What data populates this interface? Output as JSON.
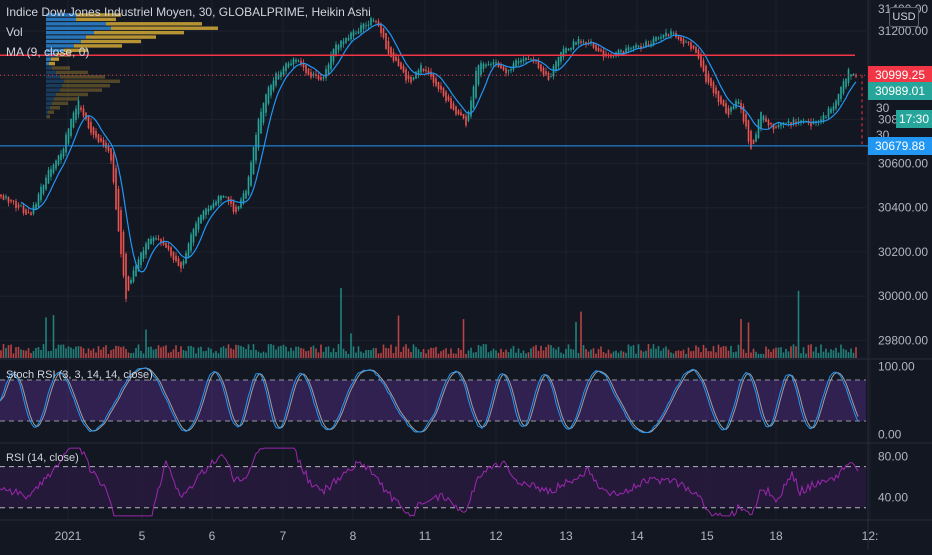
{
  "header": {
    "title": "Indice Dow Jones Industriel Moyen, 30, GLOBALPRIME, Heikin Ashi",
    "vol_label": "Vol",
    "ma_label": "MA (9, close, 0)",
    "currency": "USD",
    "top_partial_label": "31400.00"
  },
  "colors": {
    "background": "#131722",
    "up": "#26a69a",
    "down": "#ef5350",
    "ma": "#2196f3",
    "resistance": "#f23645",
    "support": "#2196f3",
    "vp_blue": "#2a7ec8",
    "vp_gold": "#c9a235",
    "stoch_k": "#2196f3",
    "stoch_d": "#ff9800",
    "stoch_fill": "#4a2a78",
    "rsi_line": "#9c27b0",
    "rsi_fill": "#2a1a40",
    "badge_last": "#f23645",
    "badge_green": "#26a69a",
    "badge_blue": "#2196f3"
  },
  "chart_data": [
    {
      "type": "candlestick",
      "style": "Heikin Ashi",
      "symbol": "GLOBALPRIME",
      "interval": "30",
      "price_axis_ticks": [
        31200,
        31000,
        30800,
        30600,
        30400,
        30200,
        30000,
        29800
      ],
      "price_range": [
        29720,
        31340
      ],
      "x_labels": [
        "2021",
        "5",
        "6",
        "7",
        "8",
        "11",
        "12",
        "13",
        "14",
        "15",
        "18",
        "12:"
      ],
      "trend_anchors": [
        [
          0,
          30460
        ],
        [
          20,
          30400
        ],
        [
          30,
          30360
        ],
        [
          45,
          30530
        ],
        [
          62,
          30660
        ],
        [
          78,
          30890
        ],
        [
          92,
          30730
        ],
        [
          110,
          30660
        ],
        [
          118,
          30300
        ],
        [
          126,
          29980
        ],
        [
          136,
          30150
        ],
        [
          152,
          30280
        ],
        [
          170,
          30200
        ],
        [
          182,
          30120
        ],
        [
          195,
          30330
        ],
        [
          210,
          30410
        ],
        [
          225,
          30460
        ],
        [
          235,
          30380
        ],
        [
          246,
          30480
        ],
        [
          258,
          30790
        ],
        [
          270,
          30960
        ],
        [
          282,
          31030
        ],
        [
          296,
          31080
        ],
        [
          310,
          31000
        ],
        [
          322,
          30980
        ],
        [
          336,
          31140
        ],
        [
          350,
          31180
        ],
        [
          362,
          31220
        ],
        [
          374,
          31260
        ],
        [
          386,
          31130
        ],
        [
          398,
          31040
        ],
        [
          410,
          30960
        ],
        [
          420,
          31050
        ],
        [
          430,
          31000
        ],
        [
          444,
          30900
        ],
        [
          458,
          30820
        ],
        [
          466,
          30780
        ],
        [
          478,
          31050
        ],
        [
          492,
          31060
        ],
        [
          506,
          31020
        ],
        [
          520,
          31080
        ],
        [
          534,
          31060
        ],
        [
          548,
          30980
        ],
        [
          562,
          31110
        ],
        [
          576,
          31150
        ],
        [
          590,
          31150
        ],
        [
          604,
          31080
        ],
        [
          618,
          31100
        ],
        [
          632,
          31120
        ],
        [
          646,
          31140
        ],
        [
          660,
          31170
        ],
        [
          672,
          31190
        ],
        [
          684,
          31150
        ],
        [
          696,
          31100
        ],
        [
          706,
          30980
        ],
        [
          716,
          30900
        ],
        [
          728,
          30830
        ],
        [
          738,
          30890
        ],
        [
          748,
          30720
        ],
        [
          752,
          30640
        ],
        [
          760,
          30830
        ],
        [
          772,
          30760
        ],
        [
          786,
          30780
        ],
        [
          800,
          30790
        ],
        [
          812,
          30780
        ],
        [
          826,
          30820
        ],
        [
          838,
          30900
        ],
        [
          848,
          31020
        ],
        [
          856,
          30990
        ]
      ],
      "moving_average": {
        "period": 9,
        "source": "close"
      },
      "resistance_level": 31090,
      "support_level": 30679.88,
      "last_price": 30999.25,
      "price_badges": [
        {
          "label": "30999.25",
          "price": 30999.25,
          "kind": "last"
        },
        {
          "label": "30989.01",
          "price": 30930,
          "kind": "green"
        },
        {
          "label": "30",
          "price": 30850,
          "kind": "axis"
        },
        {
          "label": "17:30",
          "price": 30800,
          "kind": "green"
        },
        {
          "label": "30",
          "price": 30730,
          "kind": "axis"
        },
        {
          "label": "30679.88",
          "price": 30679.88,
          "kind": "blue"
        }
      ]
    },
    {
      "type": "volume_profile",
      "bin_top": 31280,
      "bin_height": 20,
      "rows": [
        [
          30,
          45
        ],
        [
          30,
          40
        ],
        [
          60,
          96
        ],
        [
          65,
          107
        ],
        [
          48,
          90
        ],
        [
          40,
          70
        ],
        [
          35,
          60
        ],
        [
          28,
          48
        ],
        [
          18,
          24
        ],
        [
          10,
          15
        ],
        [
          5,
          8
        ],
        [
          3,
          6
        ],
        [
          6,
          18
        ],
        [
          10,
          32
        ],
        [
          14,
          45
        ],
        [
          18,
          56
        ],
        [
          16,
          48
        ],
        [
          14,
          42
        ],
        [
          10,
          32
        ],
        [
          8,
          24
        ],
        [
          6,
          16
        ],
        [
          4,
          10
        ],
        [
          2,
          6
        ],
        [
          1,
          3
        ]
      ]
    },
    {
      "type": "volume",
      "name": "Vol"
    },
    {
      "type": "line",
      "name": "Stoch RSI (3, 3, 14, 14, close)",
      "y_ticks": [
        100,
        0
      ],
      "y_tick_labels": [
        "100.00",
        "0.00"
      ],
      "bands": [
        80,
        20
      ],
      "ylim": [
        -5,
        105
      ],
      "series": [
        {
          "name": "K"
        },
        {
          "name": "D"
        }
      ]
    },
    {
      "type": "line",
      "name": "RSI (14, close)",
      "y_ticks": [
        80,
        40
      ],
      "y_tick_labels": [
        "80.00",
        "40.00"
      ],
      "bands": [
        70,
        30
      ],
      "ylim": [
        20,
        90
      ]
    }
  ]
}
